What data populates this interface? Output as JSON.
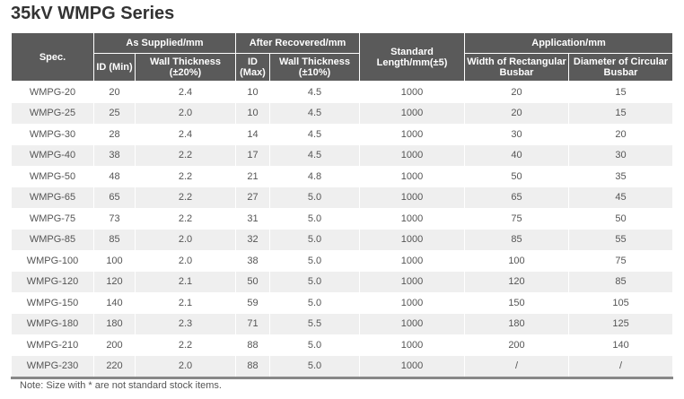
{
  "title": "35kV WMPG Series",
  "headers": {
    "spec": "Spec.",
    "as_supplied": "As Supplied/mm",
    "after_recovered": "After Recovered/mm",
    "length": "Standard Length/mm(±5)",
    "application": "Application/mm",
    "id_min": "ID (Min)",
    "wall_20": "Wall Thickness (±20%)",
    "id_max": "ID (Max)",
    "wall_10": "Wall Thickness (±10%)",
    "rect": "Width of Rectangular Busbar",
    "circ": "Diameter of Circular Busbar"
  },
  "rows": [
    [
      "WMPG-20",
      "20",
      "2.4",
      "10",
      "4.5",
      "1000",
      "20",
      "15"
    ],
    [
      "WMPG-25",
      "25",
      "2.0",
      "10",
      "4.5",
      "1000",
      "20",
      "15"
    ],
    [
      "WMPG-30",
      "28",
      "2.4",
      "14",
      "4.5",
      "1000",
      "30",
      "20"
    ],
    [
      "WMPG-40",
      "38",
      "2.2",
      "17",
      "4.5",
      "1000",
      "40",
      "30"
    ],
    [
      "WMPG-50",
      "48",
      "2.2",
      "21",
      "4.8",
      "1000",
      "50",
      "35"
    ],
    [
      "WMPG-65",
      "65",
      "2.2",
      "27",
      "5.0",
      "1000",
      "65",
      "45"
    ],
    [
      "WMPG-75",
      "73",
      "2.2",
      "31",
      "5.0",
      "1000",
      "75",
      "50"
    ],
    [
      "WMPG-85",
      "85",
      "2.0",
      "32",
      "5.0",
      "1000",
      "85",
      "55"
    ],
    [
      "WMPG-100",
      "100",
      "2.0",
      "38",
      "5.0",
      "1000",
      "100",
      "75"
    ],
    [
      "WMPG-120",
      "120",
      "2.1",
      "50",
      "5.0",
      "1000",
      "120",
      "85"
    ],
    [
      "WMPG-150",
      "140",
      "2.1",
      "59",
      "5.0",
      "1000",
      "150",
      "105"
    ],
    [
      "WMPG-180",
      "180",
      "2.3",
      "71",
      "5.5",
      "1000",
      "180",
      "125"
    ],
    [
      "WMPG-210",
      "200",
      "2.2",
      "88",
      "5.0",
      "1000",
      "200",
      "140"
    ],
    [
      "WMPG-230",
      "220",
      "2.0",
      "88",
      "5.0",
      "1000",
      "/",
      "/"
    ]
  ],
  "note": "Note: Size with * are not standard stock items."
}
